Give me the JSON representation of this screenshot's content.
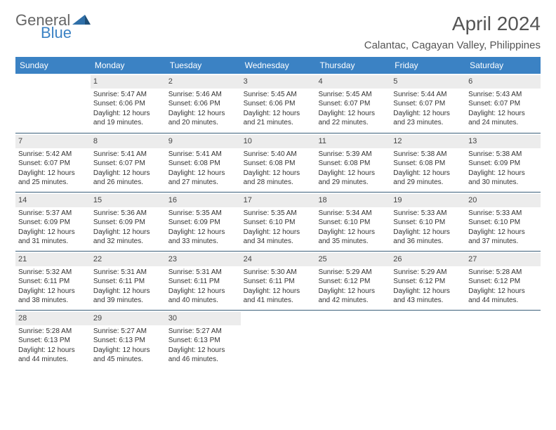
{
  "logo": {
    "word1": "General",
    "word2": "Blue"
  },
  "title": "April 2024",
  "location": "Calantac, Cagayan Valley, Philippines",
  "dayHeaders": [
    "Sunday",
    "Monday",
    "Tuesday",
    "Wednesday",
    "Thursday",
    "Friday",
    "Saturday"
  ],
  "colors": {
    "header_bg": "#3b82c4",
    "header_text": "#ffffff",
    "daynum_bg": "#ececec",
    "rule": "#3b5f7a",
    "body_text": "#333333",
    "background": "#ffffff"
  },
  "typography": {
    "title_fontsize": 28,
    "location_fontsize": 15,
    "header_fontsize": 12,
    "cell_fontsize": 10
  },
  "weeks": [
    [
      {
        "blank": true
      },
      {
        "n": "1",
        "sr": "5:47 AM",
        "ss": "6:06 PM",
        "dl": "12 hours and 19 minutes."
      },
      {
        "n": "2",
        "sr": "5:46 AM",
        "ss": "6:06 PM",
        "dl": "12 hours and 20 minutes."
      },
      {
        "n": "3",
        "sr": "5:45 AM",
        "ss": "6:06 PM",
        "dl": "12 hours and 21 minutes."
      },
      {
        "n": "4",
        "sr": "5:45 AM",
        "ss": "6:07 PM",
        "dl": "12 hours and 22 minutes."
      },
      {
        "n": "5",
        "sr": "5:44 AM",
        "ss": "6:07 PM",
        "dl": "12 hours and 23 minutes."
      },
      {
        "n": "6",
        "sr": "5:43 AM",
        "ss": "6:07 PM",
        "dl": "12 hours and 24 minutes."
      }
    ],
    [
      {
        "n": "7",
        "sr": "5:42 AM",
        "ss": "6:07 PM",
        "dl": "12 hours and 25 minutes."
      },
      {
        "n": "8",
        "sr": "5:41 AM",
        "ss": "6:07 PM",
        "dl": "12 hours and 26 minutes."
      },
      {
        "n": "9",
        "sr": "5:41 AM",
        "ss": "6:08 PM",
        "dl": "12 hours and 27 minutes."
      },
      {
        "n": "10",
        "sr": "5:40 AM",
        "ss": "6:08 PM",
        "dl": "12 hours and 28 minutes."
      },
      {
        "n": "11",
        "sr": "5:39 AM",
        "ss": "6:08 PM",
        "dl": "12 hours and 29 minutes."
      },
      {
        "n": "12",
        "sr": "5:38 AM",
        "ss": "6:08 PM",
        "dl": "12 hours and 29 minutes."
      },
      {
        "n": "13",
        "sr": "5:38 AM",
        "ss": "6:09 PM",
        "dl": "12 hours and 30 minutes."
      }
    ],
    [
      {
        "n": "14",
        "sr": "5:37 AM",
        "ss": "6:09 PM",
        "dl": "12 hours and 31 minutes."
      },
      {
        "n": "15",
        "sr": "5:36 AM",
        "ss": "6:09 PM",
        "dl": "12 hours and 32 minutes."
      },
      {
        "n": "16",
        "sr": "5:35 AM",
        "ss": "6:09 PM",
        "dl": "12 hours and 33 minutes."
      },
      {
        "n": "17",
        "sr": "5:35 AM",
        "ss": "6:10 PM",
        "dl": "12 hours and 34 minutes."
      },
      {
        "n": "18",
        "sr": "5:34 AM",
        "ss": "6:10 PM",
        "dl": "12 hours and 35 minutes."
      },
      {
        "n": "19",
        "sr": "5:33 AM",
        "ss": "6:10 PM",
        "dl": "12 hours and 36 minutes."
      },
      {
        "n": "20",
        "sr": "5:33 AM",
        "ss": "6:10 PM",
        "dl": "12 hours and 37 minutes."
      }
    ],
    [
      {
        "n": "21",
        "sr": "5:32 AM",
        "ss": "6:11 PM",
        "dl": "12 hours and 38 minutes."
      },
      {
        "n": "22",
        "sr": "5:31 AM",
        "ss": "6:11 PM",
        "dl": "12 hours and 39 minutes."
      },
      {
        "n": "23",
        "sr": "5:31 AM",
        "ss": "6:11 PM",
        "dl": "12 hours and 40 minutes."
      },
      {
        "n": "24",
        "sr": "5:30 AM",
        "ss": "6:11 PM",
        "dl": "12 hours and 41 minutes."
      },
      {
        "n": "25",
        "sr": "5:29 AM",
        "ss": "6:12 PM",
        "dl": "12 hours and 42 minutes."
      },
      {
        "n": "26",
        "sr": "5:29 AM",
        "ss": "6:12 PM",
        "dl": "12 hours and 43 minutes."
      },
      {
        "n": "27",
        "sr": "5:28 AM",
        "ss": "6:12 PM",
        "dl": "12 hours and 44 minutes."
      }
    ],
    [
      {
        "n": "28",
        "sr": "5:28 AM",
        "ss": "6:13 PM",
        "dl": "12 hours and 44 minutes."
      },
      {
        "n": "29",
        "sr": "5:27 AM",
        "ss": "6:13 PM",
        "dl": "12 hours and 45 minutes."
      },
      {
        "n": "30",
        "sr": "5:27 AM",
        "ss": "6:13 PM",
        "dl": "12 hours and 46 minutes."
      },
      {
        "blank": true
      },
      {
        "blank": true
      },
      {
        "blank": true
      },
      {
        "blank": true
      }
    ]
  ],
  "labels": {
    "sunrise": "Sunrise:",
    "sunset": "Sunset:",
    "daylight": "Daylight:"
  }
}
